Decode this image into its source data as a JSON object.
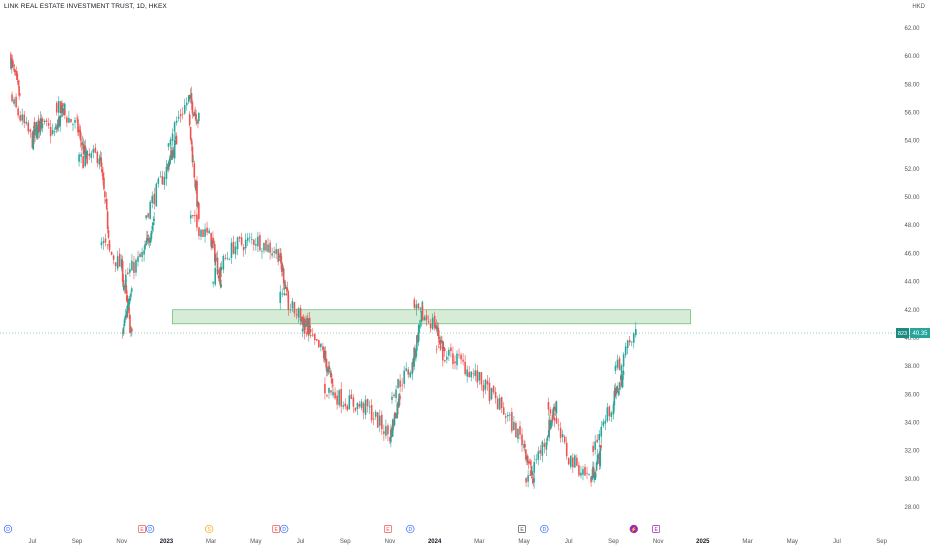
{
  "header": {
    "title": "LINK REAL ESTATE INVESTMENT TRUST, 1D, HKEX",
    "currency": "HKD"
  },
  "price_tag": {
    "symbol": "823",
    "price": "40.35"
  },
  "colors": {
    "up": "#26a69a",
    "down": "#ef5350",
    "zone_fill": "#c8e6c9",
    "zone_stroke": "#4caf50",
    "axis_text": "#555555"
  },
  "chart_data": {
    "type": "candlestick",
    "title": "",
    "xlabel": "",
    "ylabel": "",
    "ylim": [
      27,
      63
    ],
    "y_ticks": [
      "62.00",
      "60.00",
      "58.00",
      "56.00",
      "54.00",
      "52.00",
      "50.00",
      "48.00",
      "46.00",
      "44.00",
      "42.00",
      "40.00",
      "38.00",
      "36.00",
      "34.00",
      "32.00",
      "30.00",
      "28.00"
    ],
    "x_ticks": [
      "Jul",
      "Sep",
      "Nov",
      "2023",
      "Mar",
      "May",
      "Jul",
      "Sep",
      "Nov",
      "2024",
      "Mar",
      "May",
      "Jul",
      "Sep",
      "Nov",
      "2025",
      "Mar",
      "May",
      "Jul",
      "Sep"
    ],
    "resistance_zone": {
      "low": 41.0,
      "high": 42.0,
      "from": "2023-01",
      "to": "2024-12"
    },
    "last_price": 40.35,
    "price_path": [
      [
        "2022-06",
        60.0
      ],
      [
        "2022-06",
        57.0
      ],
      [
        "2022-07",
        54.0
      ],
      [
        "2022-07",
        55.5
      ],
      [
        "2022-08",
        54.5
      ],
      [
        "2022-08",
        56.5
      ],
      [
        "2022-09",
        55.0
      ],
      [
        "2022-09",
        52.5
      ],
      [
        "2022-10",
        53.0
      ],
      [
        "2022-10",
        47.0
      ],
      [
        "2022-11",
        45.0
      ],
      [
        "2022-11",
        40.0
      ],
      [
        "2022-11",
        44.0
      ],
      [
        "2022-12",
        46.0
      ],
      [
        "2022-12",
        48.5
      ],
      [
        "2023-01",
        52.0
      ],
      [
        "2023-01",
        54.0
      ],
      [
        "2023-02",
        57.0
      ],
      [
        "2023-02",
        55.5
      ],
      [
        "2023-02",
        48.5
      ],
      [
        "2023-03",
        47.0
      ],
      [
        "2023-03",
        44.0
      ],
      [
        "2023-04",
        46.5
      ],
      [
        "2023-05",
        47.0
      ],
      [
        "2023-06",
        46.0
      ],
      [
        "2023-06",
        43.0
      ],
      [
        "2023-07",
        41.5
      ],
      [
        "2023-07",
        40.5
      ],
      [
        "2023-08",
        39.0
      ],
      [
        "2023-08",
        36.5
      ],
      [
        "2023-09",
        35.5
      ],
      [
        "2023-10",
        35.0
      ],
      [
        "2023-11",
        33.0
      ],
      [
        "2023-11",
        36.0
      ],
      [
        "2023-12",
        38.0
      ],
      [
        "2023-12",
        42.0
      ],
      [
        "2024-01",
        41.0
      ],
      [
        "2024-01",
        39.0
      ],
      [
        "2024-02",
        38.5
      ],
      [
        "2024-03",
        37.0
      ],
      [
        "2024-04",
        35.0
      ],
      [
        "2024-05",
        32.5
      ],
      [
        "2024-05",
        29.5
      ],
      [
        "2024-06",
        33.0
      ],
      [
        "2024-06",
        35.5
      ],
      [
        "2024-07",
        31.5
      ],
      [
        "2024-08",
        30.0
      ],
      [
        "2024-08",
        32.0
      ],
      [
        "2024-09",
        35.5
      ],
      [
        "2024-09",
        37.5
      ],
      [
        "2024-10",
        40.35
      ]
    ],
    "events": [
      {
        "date": "2022-06",
        "label": "D",
        "kind": "dividend"
      },
      {
        "date": "2022-12",
        "label": "E",
        "kind": "earnings"
      },
      {
        "date": "2022-12",
        "label": "D",
        "kind": "dividend"
      },
      {
        "date": "2023-03",
        "label": "S",
        "kind": "split"
      },
      {
        "date": "2023-06",
        "label": "E",
        "kind": "earnings"
      },
      {
        "date": "2023-06",
        "label": "D",
        "kind": "dividend"
      },
      {
        "date": "2023-11",
        "label": "E",
        "kind": "earnings"
      },
      {
        "date": "2023-12",
        "label": "D",
        "kind": "dividend"
      },
      {
        "date": "2024-05",
        "label": "E",
        "kind": "earnings"
      },
      {
        "date": "2024-06",
        "label": "D",
        "kind": "dividend"
      },
      {
        "date": "2024-10",
        "label": "⚡",
        "kind": "news"
      },
      {
        "date": "2024-11",
        "label": "E",
        "kind": "earnings"
      }
    ]
  }
}
